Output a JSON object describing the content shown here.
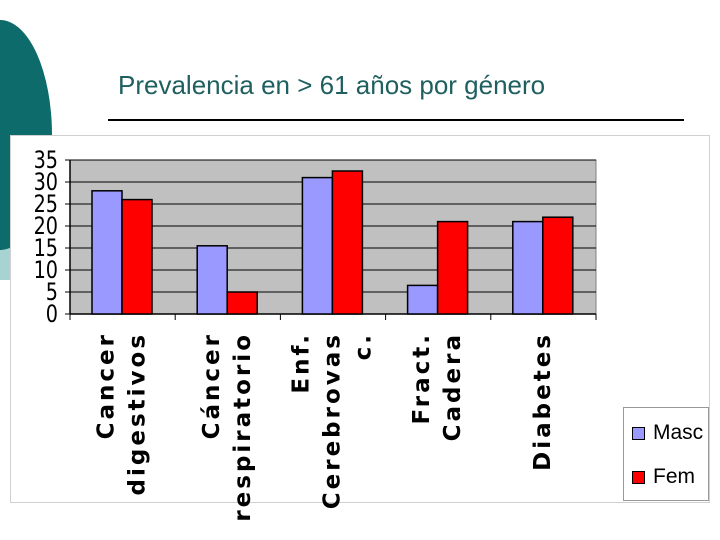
{
  "slide": {
    "title": "Prevalencia en > 61 años por género"
  },
  "colors": {
    "teal_dark": "#0e6b6b",
    "teal_light": "#a7d3d3",
    "plot_bg": "#c0c0c0",
    "masc": "#9999ff",
    "fem": "#ff0000"
  },
  "chart_data": {
    "type": "bar",
    "title": "",
    "xlabel": "",
    "ylabel": "",
    "ylim": [
      0,
      35
    ],
    "yticks": [
      0,
      5,
      10,
      15,
      20,
      25,
      30,
      35
    ],
    "grid": true,
    "legend_position": "bottom-right",
    "categories": [
      [
        "Cancer",
        "digestivos"
      ],
      [
        "Cáncer",
        "respiratorio"
      ],
      [
        "Enf.",
        "Cerebrovas",
        "c."
      ],
      [
        "Fract.",
        "Cadera"
      ],
      [
        "Diabetes"
      ]
    ],
    "series": [
      {
        "name": "Masc",
        "color": "#9999ff",
        "values": [
          28,
          15.5,
          31,
          6.5,
          21
        ]
      },
      {
        "name": "Fem",
        "color": "#ff0000",
        "values": [
          26,
          5,
          32.5,
          21,
          22
        ]
      }
    ]
  }
}
